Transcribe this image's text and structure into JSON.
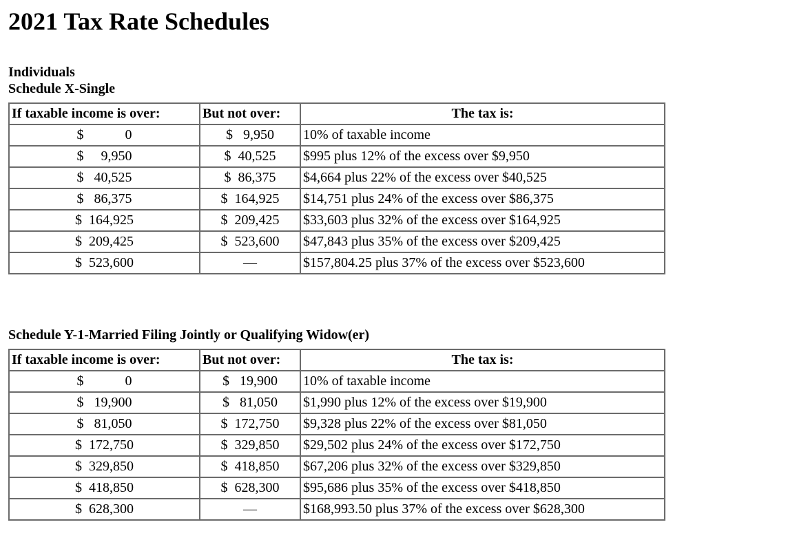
{
  "page": {
    "title": "2021 Tax Rate Schedules",
    "group_heading": "Individuals"
  },
  "tables": [
    {
      "heading": "Schedule X-Single",
      "columns": [
        "If taxable income is over:",
        "But not over:",
        "The tax is:"
      ],
      "rows": [
        {
          "over": "$            0",
          "not_over": "$   9,950",
          "tax": "10% of taxable income"
        },
        {
          "over": "$     9,950",
          "not_over": "$  40,525",
          "tax": "$995 plus 12% of the excess over $9,950"
        },
        {
          "over": "$   40,525",
          "not_over": "$  86,375",
          "tax": "$4,664 plus 22% of the excess over $40,525"
        },
        {
          "over": "$   86,375",
          "not_over": "$  164,925",
          "tax": "$14,751 plus 24% of the excess over $86,375"
        },
        {
          "over": "$  164,925",
          "not_over": "$  209,425",
          "tax": "$33,603 plus 32% of the excess over $164,925"
        },
        {
          "over": "$  209,425",
          "not_over": "$  523,600",
          "tax": "$47,843 plus 35% of the excess over $209,425"
        },
        {
          "over": "$  523,600",
          "not_over": "—",
          "tax": "$157,804.25 plus 37% of the excess over $523,600"
        }
      ]
    },
    {
      "heading": "Schedule Y-1-Married Filing Jointly or Qualifying Widow(er)",
      "columns": [
        "If taxable income is over:",
        "But not over:",
        "The tax is:"
      ],
      "rows": [
        {
          "over": "$            0",
          "not_over": "$   19,900",
          "tax": "10% of taxable income"
        },
        {
          "over": "$   19,900",
          "not_over": "$   81,050",
          "tax": "$1,990 plus 12% of the excess over $19,900"
        },
        {
          "over": "$   81,050",
          "not_over": "$  172,750",
          "tax": "$9,328 plus 22% of the excess over $81,050"
        },
        {
          "over": "$  172,750",
          "not_over": "$  329,850",
          "tax": "$29,502 plus 24% of the excess over $172,750"
        },
        {
          "over": "$  329,850",
          "not_over": "$  418,850",
          "tax": "$67,206 plus 32% of the excess over $329,850"
        },
        {
          "over": "$  418,850",
          "not_over": "$  628,300",
          "tax": "$95,686 plus 35% of the excess over $418,850"
        },
        {
          "over": "$  628,300",
          "not_over": "—",
          "tax": "$168,993.50 plus 37% of the excess over $628,300"
        }
      ]
    }
  ]
}
